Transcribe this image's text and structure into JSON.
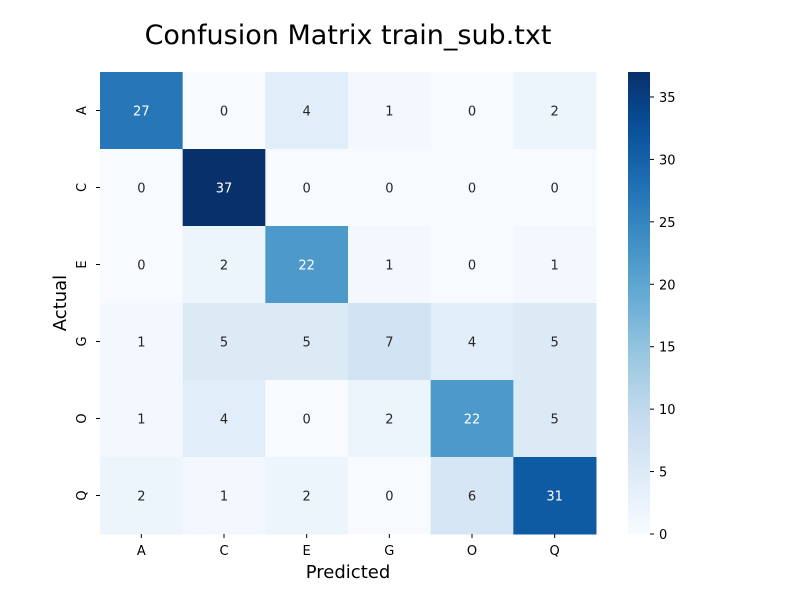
{
  "chart_data": {
    "type": "heatmap",
    "title": "Confusion Matrix train_sub.txt",
    "xlabel": "Predicted",
    "ylabel": "Actual",
    "x_categories": [
      "A",
      "C",
      "E",
      "G",
      "O",
      "Q"
    ],
    "y_categories": [
      "A",
      "C",
      "E",
      "G",
      "O",
      "Q"
    ],
    "values": [
      [
        27,
        0,
        4,
        1,
        0,
        2
      ],
      [
        0,
        37,
        0,
        0,
        0,
        0
      ],
      [
        0,
        2,
        22,
        1,
        0,
        1
      ],
      [
        1,
        5,
        5,
        7,
        4,
        5
      ],
      [
        1,
        4,
        0,
        2,
        22,
        5
      ],
      [
        2,
        1,
        2,
        0,
        6,
        31
      ]
    ],
    "colormap": "Blues",
    "color_range": [
      0,
      37
    ],
    "colorbar_ticks": [
      0,
      5,
      10,
      15,
      20,
      25,
      30,
      35
    ],
    "annotations": true
  }
}
